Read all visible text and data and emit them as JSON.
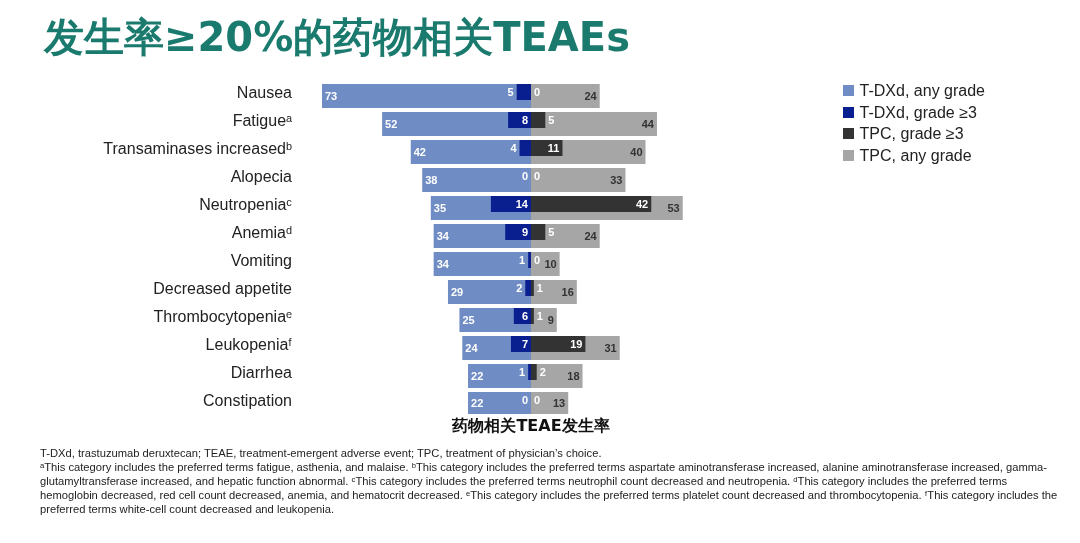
{
  "chart_data": [
    {
      "type": "bar",
      "orientation": "horizontal",
      "title": "发生率≥20%的药物相关TEAEs",
      "xlabel": "药物相关TEAE发生率",
      "categories": [
        "Nausea",
        "Fatigueᵃ",
        "Transaminases increasedᵇ",
        "Alopecia",
        "Neutropeniaᶜ",
        "Anemiaᵈ",
        "Vomiting",
        "Decreased appetite",
        "Thrombocytopeniaᵉ",
        "Leukopeniaᶠ",
        "Diarrhea",
        "Constipation"
      ],
      "tick_labels": "y",
      "data_labels": true,
      "legend": "top right",
      "series": [
        {
          "name": "T-DXd, any grade",
          "color": "#6f8cc4",
          "values": [
            73,
            52,
            42,
            38,
            35,
            34,
            34,
            29,
            25,
            24,
            22,
            22
          ]
        },
        {
          "name": "T-DXd, grade ≥3",
          "color": "#0a1f8f",
          "values": [
            5,
            8,
            4,
            0,
            14,
            9,
            1,
            2,
            6,
            7,
            1,
            0
          ]
        }
      ],
      "annotations": [
        "T-DXd, trastuzumab deruxtecan; TEAE, treatment-emergent adverse event; TPC, treatment of physician’s choice.",
        "ᵃThis category includes the preferred terms fatigue, asthenia, and malaise. ᵇThis category includes the preferred terms aspartate aminotransferase increased, alanine aminotransferase increased, gamma-glutamyltransferase increased, and hepatic function abnormal. ᶜThis category includes the preferred terms neutrophil count decreased and neutropenia. ᵈThis category includes the preferred terms hemoglobin decreased, red cell count decreased, anemia, and hematocrit decreased. ᵉThis category includes the preferred terms platelet count decreased and thrombocytopenia. ᶠThis category includes the preferred terms white-cell count decreased and leukopenia."
      ]
    },
    {
      "type": "bar",
      "orientation": "horizontal",
      "tick_labels": false,
      "data_labels": true,
      "legend": "top right",
      "series": [
        {
          "name": "TPC, any grade",
          "color": "#a6a6a6",
          "values": [
            24,
            44,
            40,
            33,
            53,
            24,
            10,
            16,
            9,
            31,
            18,
            13
          ]
        },
        {
          "name": "TPC, grade ≥3",
          "color": "#333333",
          "values": [
            0,
            5,
            11,
            0,
            42,
            5,
            0,
            1,
            1,
            19,
            2,
            0
          ]
        }
      ]
    }
  ]
}
